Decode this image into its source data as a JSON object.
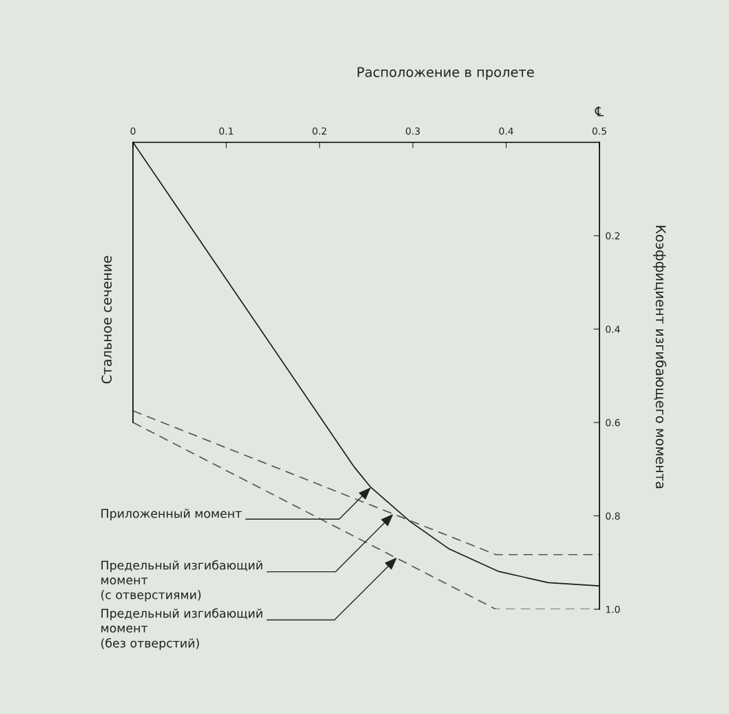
{
  "chart_data": {
    "type": "line",
    "xlabel": "Расположение в пролете",
    "ylabel": "Стальное сечение",
    "y2label": "Коэффициент изгибающего момента",
    "xlim": [
      0,
      0.5
    ],
    "xticks": [
      0,
      0.1,
      0.2,
      0.3,
      0.4,
      0.5
    ],
    "ylim": [
      1.0,
      0
    ],
    "yticks": [
      0.2,
      0.4,
      0.6,
      0.8,
      {
        "value": 1,
        "label": "1.0"
      }
    ],
    "grid": false,
    "marker": "none",
    "series": [
      {
        "color": "#1a1a1a",
        "line_style": "solid",
        "x": [
          0,
          0.237,
          0.255,
          0.297,
          0.339,
          0.392,
          0.445,
          0.5
        ],
        "values": [
          0,
          0.695,
          0.739,
          0.812,
          0.871,
          0.919,
          0.943,
          0.95
        ]
      },
      {
        "color": "#555555",
        "line_style": "dashed",
        "x": [
          0,
          0.389,
          0.5
        ],
        "values": [
          0.575,
          0.883,
          0.883
        ]
      },
      {
        "color": "#555555",
        "line_style": "dashed",
        "x": [
          0,
          0.389,
          0.5
        ],
        "values": [
          0.6,
          1.0,
          1.0
        ]
      }
    ],
    "annotations": [
      "℄",
      {
        "text": "Приложенный момент",
        "x": 0.255,
        "y": 0.739
      },
      {
        "text": "Предельный изгибающий\nмомент\n(с отверстиями)",
        "x": 0.279,
        "y": 0.796
      },
      {
        "text": "Предельный изгибающий\nмомент\n(без отверстий)",
        "x": 0.283,
        "y": 0.889
      }
    ]
  }
}
